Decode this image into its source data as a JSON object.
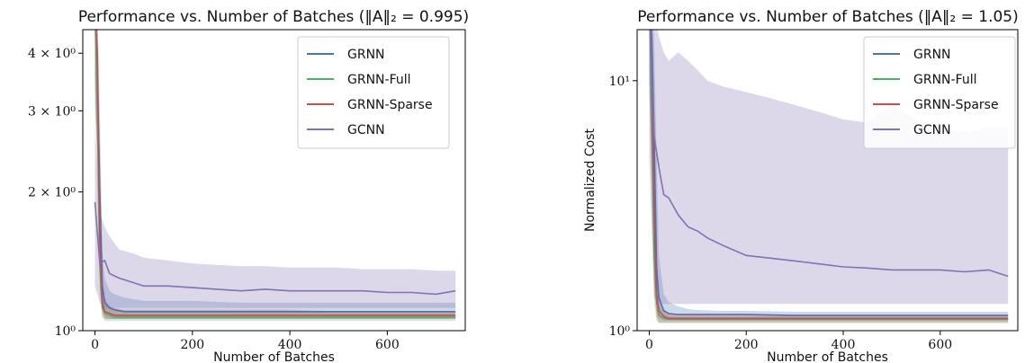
{
  "chart_data": [
    {
      "type": "line",
      "title": "Performance vs. Number of Batches (‖A‖₂ = 0.995)",
      "xlabel": "Number of Batches",
      "ylabel": "",
      "yscale": "log",
      "xlim": [
        -25,
        760
      ],
      "ylim": [
        1.0,
        4.5
      ],
      "xticks": [
        {
          "value": 0,
          "label": "0"
        },
        {
          "value": 200,
          "label": "200"
        },
        {
          "value": 400,
          "label": "400"
        },
        {
          "value": 600,
          "label": "600"
        }
      ],
      "yticks": [
        {
          "value": 1,
          "label": "10⁰"
        },
        {
          "value": 2,
          "label": "2 × 10⁰"
        },
        {
          "value": 3,
          "label": "3 × 10⁰"
        },
        {
          "value": 4,
          "label": "4 × 10⁰"
        }
      ],
      "legend_position": "upper right",
      "series": [
        {
          "name": "GRNN",
          "color": "#4c72b0",
          "x": [
            0,
            5,
            10,
            15,
            20,
            30,
            40,
            60,
            80,
            100,
            150,
            200,
            300,
            400,
            500,
            600,
            740
          ],
          "values": [
            5.0,
            3.6,
            2.0,
            1.25,
            1.15,
            1.12,
            1.11,
            1.1,
            1.1,
            1.1,
            1.1,
            1.1,
            1.1,
            1.1,
            1.1,
            1.1,
            1.1
          ],
          "band_low": [
            3.0,
            2.4,
            1.4,
            1.12,
            1.07,
            1.06,
            1.06,
            1.06,
            1.06,
            1.06,
            1.06,
            1.06,
            1.06,
            1.06,
            1.06,
            1.06,
            1.06
          ],
          "band_high": [
            5.0,
            5.0,
            3.0,
            1.5,
            1.3,
            1.22,
            1.2,
            1.18,
            1.17,
            1.16,
            1.16,
            1.16,
            1.15,
            1.15,
            1.15,
            1.15,
            1.15
          ]
        },
        {
          "name": "GRNN-Full",
          "color": "#55a868",
          "x": [
            0,
            5,
            10,
            15,
            20,
            30,
            40,
            60,
            80,
            100,
            150,
            200,
            300,
            400,
            500,
            600,
            740
          ],
          "values": [
            5.0,
            3.0,
            1.4,
            1.12,
            1.09,
            1.08,
            1.07,
            1.07,
            1.07,
            1.07,
            1.07,
            1.07,
            1.07,
            1.07,
            1.07,
            1.07,
            1.07
          ],
          "band_low": [
            3.5,
            2.0,
            1.2,
            1.07,
            1.05,
            1.05,
            1.05,
            1.05,
            1.05,
            1.05,
            1.05,
            1.05,
            1.05,
            1.05,
            1.05,
            1.05,
            1.05
          ],
          "band_high": [
            5.0,
            4.5,
            1.8,
            1.2,
            1.14,
            1.12,
            1.11,
            1.1,
            1.1,
            1.1,
            1.1,
            1.1,
            1.1,
            1.1,
            1.1,
            1.1,
            1.1
          ]
        },
        {
          "name": "GRNN-Sparse",
          "color": "#c44e52",
          "x": [
            0,
            5,
            10,
            15,
            20,
            30,
            40,
            60,
            80,
            100,
            150,
            200,
            300,
            400,
            500,
            600,
            740
          ],
          "values": [
            5.0,
            4.0,
            1.6,
            1.15,
            1.1,
            1.09,
            1.08,
            1.08,
            1.08,
            1.08,
            1.08,
            1.08,
            1.08,
            1.08,
            1.08,
            1.08,
            1.08
          ],
          "band_low": [
            3.5,
            2.5,
            1.25,
            1.08,
            1.06,
            1.06,
            1.06,
            1.06,
            1.06,
            1.06,
            1.06,
            1.06,
            1.06,
            1.06,
            1.06,
            1.06,
            1.06
          ],
          "band_high": [
            5.0,
            5.0,
            2.4,
            1.3,
            1.18,
            1.13,
            1.12,
            1.11,
            1.11,
            1.11,
            1.11,
            1.11,
            1.11,
            1.11,
            1.1,
            1.1,
            1.1
          ]
        },
        {
          "name": "GCNN",
          "color": "#8172b2",
          "x": [
            0,
            10,
            20,
            30,
            50,
            80,
            100,
            150,
            200,
            250,
            300,
            350,
            400,
            450,
            500,
            550,
            600,
            650,
            700,
            740
          ],
          "values": [
            1.9,
            1.4,
            1.42,
            1.33,
            1.3,
            1.27,
            1.25,
            1.25,
            1.24,
            1.23,
            1.22,
            1.23,
            1.22,
            1.22,
            1.22,
            1.22,
            1.21,
            1.21,
            1.2,
            1.22
          ],
          "band_low": [
            1.25,
            1.15,
            1.12,
            1.12,
            1.12,
            1.12,
            1.12,
            1.12,
            1.12,
            1.12,
            1.12,
            1.12,
            1.12,
            1.12,
            1.12,
            1.12,
            1.12,
            1.12,
            1.12,
            1.12
          ],
          "band_high": [
            2.8,
            1.8,
            1.68,
            1.6,
            1.5,
            1.47,
            1.44,
            1.42,
            1.4,
            1.39,
            1.38,
            1.38,
            1.37,
            1.37,
            1.37,
            1.36,
            1.36,
            1.36,
            1.35,
            1.35
          ]
        }
      ]
    },
    {
      "type": "line",
      "title": "Performance vs. Number of Batches (‖A‖₂ = 1.05)",
      "xlabel": "Number of Batches",
      "ylabel": "Normalized Cost",
      "yscale": "log",
      "xlim": [
        -25,
        760
      ],
      "ylim": [
        1.0,
        16.0
      ],
      "xticks": [
        {
          "value": 0,
          "label": "0"
        },
        {
          "value": 200,
          "label": "200"
        },
        {
          "value": 400,
          "label": "400"
        },
        {
          "value": 600,
          "label": "600"
        }
      ],
      "yticks": [
        {
          "value": 1,
          "label": "10⁰"
        },
        {
          "value": 10,
          "label": "10¹"
        }
      ],
      "legend_position": "upper right",
      "series": [
        {
          "name": "GRNN",
          "color": "#4c72b0",
          "x": [
            0,
            5,
            10,
            15,
            20,
            30,
            40,
            60,
            80,
            100,
            150,
            200,
            300,
            400,
            500,
            600,
            740
          ],
          "values": [
            20.0,
            15.0,
            6.0,
            1.8,
            1.35,
            1.2,
            1.17,
            1.16,
            1.16,
            1.16,
            1.16,
            1.16,
            1.15,
            1.15,
            1.15,
            1.15,
            1.15
          ],
          "band_low": [
            10.0,
            5.0,
            2.0,
            1.2,
            1.12,
            1.1,
            1.1,
            1.1,
            1.1,
            1.1,
            1.1,
            1.1,
            1.1,
            1.1,
            1.1,
            1.1,
            1.1
          ],
          "band_high": [
            20.0,
            20.0,
            15.0,
            5.0,
            2.0,
            1.4,
            1.3,
            1.25,
            1.22,
            1.21,
            1.2,
            1.2,
            1.19,
            1.19,
            1.19,
            1.19,
            1.19
          ]
        },
        {
          "name": "GRNN-Full",
          "color": "#55a868",
          "x": [
            0,
            5,
            10,
            15,
            20,
            30,
            40,
            60,
            80,
            100,
            150,
            200,
            300,
            400,
            500,
            600,
            740
          ],
          "values": [
            20.0,
            8.0,
            2.0,
            1.3,
            1.15,
            1.12,
            1.11,
            1.11,
            1.11,
            1.11,
            1.11,
            1.11,
            1.11,
            1.11,
            1.11,
            1.11,
            1.11
          ],
          "band_low": [
            10.0,
            3.0,
            1.3,
            1.1,
            1.07,
            1.07,
            1.07,
            1.07,
            1.07,
            1.07,
            1.07,
            1.07,
            1.07,
            1.07,
            1.07,
            1.07,
            1.07
          ],
          "band_high": [
            20.0,
            15.0,
            4.0,
            1.8,
            1.3,
            1.18,
            1.15,
            1.14,
            1.14,
            1.14,
            1.14,
            1.14,
            1.14,
            1.14,
            1.14,
            1.14,
            1.14
          ]
        },
        {
          "name": "GRNN-Sparse",
          "color": "#c44e52",
          "x": [
            0,
            5,
            10,
            15,
            20,
            30,
            40,
            60,
            80,
            100,
            150,
            200,
            300,
            400,
            500,
            600,
            740
          ],
          "values": [
            20.0,
            12.0,
            3.0,
            1.4,
            1.2,
            1.14,
            1.12,
            1.12,
            1.12,
            1.12,
            1.12,
            1.12,
            1.12,
            1.12,
            1.12,
            1.12,
            1.12
          ],
          "band_low": [
            10.0,
            4.0,
            1.5,
            1.12,
            1.08,
            1.08,
            1.08,
            1.08,
            1.08,
            1.08,
            1.08,
            1.08,
            1.08,
            1.08,
            1.08,
            1.08,
            1.08
          ],
          "band_high": [
            20.0,
            20.0,
            8.0,
            2.0,
            1.4,
            1.22,
            1.18,
            1.16,
            1.16,
            1.16,
            1.16,
            1.16,
            1.16,
            1.16,
            1.16,
            1.16,
            1.16
          ]
        },
        {
          "name": "GCNN",
          "color": "#8172b2",
          "x": [
            0,
            10,
            20,
            30,
            40,
            60,
            80,
            100,
            120,
            150,
            200,
            250,
            300,
            350,
            400,
            450,
            500,
            550,
            600,
            650,
            700,
            740
          ],
          "values": [
            20.0,
            6.0,
            4.5,
            3.5,
            3.4,
            2.9,
            2.6,
            2.5,
            2.35,
            2.2,
            2.0,
            1.95,
            1.9,
            1.85,
            1.8,
            1.78,
            1.75,
            1.75,
            1.75,
            1.72,
            1.75,
            1.65
          ],
          "band_low": [
            5.0,
            1.35,
            1.3,
            1.28,
            1.28,
            1.28,
            1.28,
            1.28,
            1.28,
            1.28,
            1.28,
            1.28,
            1.28,
            1.28,
            1.28,
            1.28,
            1.28,
            1.28,
            1.28,
            1.28,
            1.28,
            1.28
          ],
          "band_high": [
            20.0,
            20.0,
            15.0,
            13.0,
            12.0,
            13.0,
            12.0,
            11.0,
            10.0,
            9.5,
            9.0,
            8.5,
            8.0,
            7.5,
            7.0,
            6.8,
            8.0,
            7.0,
            6.5,
            6.2,
            6.5,
            6.5
          ]
        }
      ]
    }
  ]
}
